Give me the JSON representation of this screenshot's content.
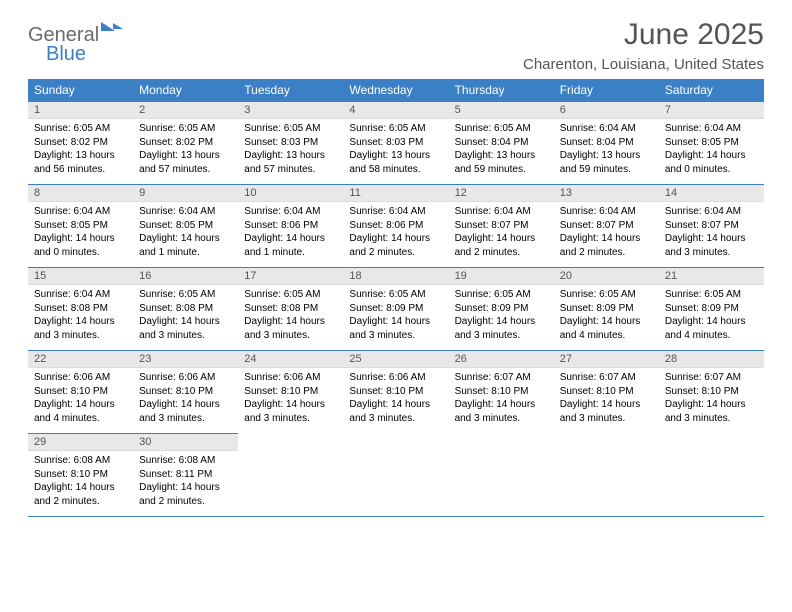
{
  "brand": {
    "word1": "General",
    "word2": "Blue"
  },
  "title": "June 2025",
  "location": "Charenton, Louisiana, United States",
  "headers": [
    "Sunday",
    "Monday",
    "Tuesday",
    "Wednesday",
    "Thursday",
    "Friday",
    "Saturday"
  ],
  "colors": {
    "header_bg": "#3b7fc4",
    "header_text": "#ffffff",
    "daynum_bg": "#e8e8e8",
    "border": "#3b7fc4",
    "title_color": "#555555"
  },
  "weeks": [
    [
      {
        "n": "1",
        "sr": "6:05 AM",
        "ss": "8:02 PM",
        "dl": "13 hours and 56 minutes."
      },
      {
        "n": "2",
        "sr": "6:05 AM",
        "ss": "8:02 PM",
        "dl": "13 hours and 57 minutes."
      },
      {
        "n": "3",
        "sr": "6:05 AM",
        "ss": "8:03 PM",
        "dl": "13 hours and 57 minutes."
      },
      {
        "n": "4",
        "sr": "6:05 AM",
        "ss": "8:03 PM",
        "dl": "13 hours and 58 minutes."
      },
      {
        "n": "5",
        "sr": "6:05 AM",
        "ss": "8:04 PM",
        "dl": "13 hours and 59 minutes."
      },
      {
        "n": "6",
        "sr": "6:04 AM",
        "ss": "8:04 PM",
        "dl": "13 hours and 59 minutes."
      },
      {
        "n": "7",
        "sr": "6:04 AM",
        "ss": "8:05 PM",
        "dl": "14 hours and 0 minutes."
      }
    ],
    [
      {
        "n": "8",
        "sr": "6:04 AM",
        "ss": "8:05 PM",
        "dl": "14 hours and 0 minutes."
      },
      {
        "n": "9",
        "sr": "6:04 AM",
        "ss": "8:05 PM",
        "dl": "14 hours and 1 minute."
      },
      {
        "n": "10",
        "sr": "6:04 AM",
        "ss": "8:06 PM",
        "dl": "14 hours and 1 minute."
      },
      {
        "n": "11",
        "sr": "6:04 AM",
        "ss": "8:06 PM",
        "dl": "14 hours and 2 minutes."
      },
      {
        "n": "12",
        "sr": "6:04 AM",
        "ss": "8:07 PM",
        "dl": "14 hours and 2 minutes."
      },
      {
        "n": "13",
        "sr": "6:04 AM",
        "ss": "8:07 PM",
        "dl": "14 hours and 2 minutes."
      },
      {
        "n": "14",
        "sr": "6:04 AM",
        "ss": "8:07 PM",
        "dl": "14 hours and 3 minutes."
      }
    ],
    [
      {
        "n": "15",
        "sr": "6:04 AM",
        "ss": "8:08 PM",
        "dl": "14 hours and 3 minutes."
      },
      {
        "n": "16",
        "sr": "6:05 AM",
        "ss": "8:08 PM",
        "dl": "14 hours and 3 minutes."
      },
      {
        "n": "17",
        "sr": "6:05 AM",
        "ss": "8:08 PM",
        "dl": "14 hours and 3 minutes."
      },
      {
        "n": "18",
        "sr": "6:05 AM",
        "ss": "8:09 PM",
        "dl": "14 hours and 3 minutes."
      },
      {
        "n": "19",
        "sr": "6:05 AM",
        "ss": "8:09 PM",
        "dl": "14 hours and 3 minutes."
      },
      {
        "n": "20",
        "sr": "6:05 AM",
        "ss": "8:09 PM",
        "dl": "14 hours and 4 minutes."
      },
      {
        "n": "21",
        "sr": "6:05 AM",
        "ss": "8:09 PM",
        "dl": "14 hours and 4 minutes."
      }
    ],
    [
      {
        "n": "22",
        "sr": "6:06 AM",
        "ss": "8:10 PM",
        "dl": "14 hours and 4 minutes."
      },
      {
        "n": "23",
        "sr": "6:06 AM",
        "ss": "8:10 PM",
        "dl": "14 hours and 3 minutes."
      },
      {
        "n": "24",
        "sr": "6:06 AM",
        "ss": "8:10 PM",
        "dl": "14 hours and 3 minutes."
      },
      {
        "n": "25",
        "sr": "6:06 AM",
        "ss": "8:10 PM",
        "dl": "14 hours and 3 minutes."
      },
      {
        "n": "26",
        "sr": "6:07 AM",
        "ss": "8:10 PM",
        "dl": "14 hours and 3 minutes."
      },
      {
        "n": "27",
        "sr": "6:07 AM",
        "ss": "8:10 PM",
        "dl": "14 hours and 3 minutes."
      },
      {
        "n": "28",
        "sr": "6:07 AM",
        "ss": "8:10 PM",
        "dl": "14 hours and 3 minutes."
      }
    ],
    [
      {
        "n": "29",
        "sr": "6:08 AM",
        "ss": "8:10 PM",
        "dl": "14 hours and 2 minutes."
      },
      {
        "n": "30",
        "sr": "6:08 AM",
        "ss": "8:11 PM",
        "dl": "14 hours and 2 minutes."
      },
      null,
      null,
      null,
      null,
      null
    ]
  ],
  "labels": {
    "sunrise": "Sunrise: ",
    "sunset": "Sunset: ",
    "daylight": "Daylight: "
  }
}
